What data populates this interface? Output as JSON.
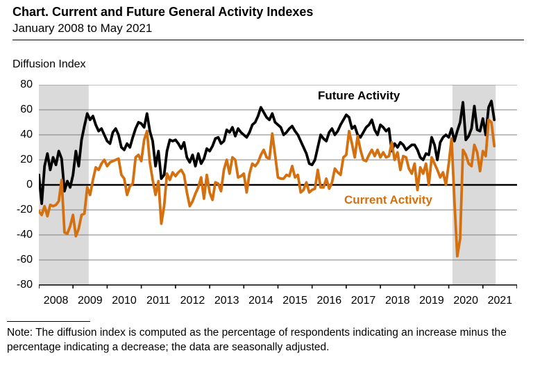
{
  "header": {
    "title": "Chart. Current and Future General Activity Indexes",
    "subtitle": "January 2008 to May 2021"
  },
  "note": "Note: The diffusion index is computed as the percentage of respondents indicating an increase minus the percentage indicating a decrease; the data are seasonally adjusted.",
  "chart_data": {
    "type": "line",
    "title": "Chart. Current and Future General Activity Indexes",
    "subtitle": "January 2008 to May 2021",
    "ylabel": "Diffusion Index",
    "xlabel": "",
    "ylim": [
      -80,
      80
    ],
    "yticks": [
      80,
      60,
      40,
      20,
      0,
      -20,
      -40,
      -60,
      -80
    ],
    "grid": true,
    "gridline_color": "#7f7f7f",
    "zero_line_color": "#000000",
    "x_start": "2008-01",
    "x_end": "2021-05",
    "x_frequency": "monthly",
    "x_total_months_span": 168,
    "year_labels": [
      "2008",
      "2009",
      "2010",
      "2011",
      "2012",
      "2013",
      "2014",
      "2015",
      "2016",
      "2017",
      "2018",
      "2019",
      "2020",
      "2021"
    ],
    "recession_shading_color": "#dadada",
    "recession_bands_months": [
      {
        "start": 0,
        "end": 17.5
      },
      {
        "start": 145.3,
        "end": 160.5
      }
    ],
    "series": [
      {
        "name": "Future Activity",
        "color": "#000000",
        "values": [
          8,
          -15,
          15,
          25,
          12,
          22,
          16,
          27,
          21,
          -5,
          3,
          -2,
          8,
          27,
          15,
          36,
          47,
          57,
          52,
          55,
          48,
          43,
          45,
          40,
          35,
          33,
          42,
          45,
          40,
          30,
          28,
          33,
          30,
          38,
          45,
          50,
          49,
          46,
          57,
          43,
          35,
          15,
          27,
          5,
          8,
          27,
          36,
          35,
          36,
          33,
          29,
          34,
          22,
          18,
          24,
          15,
          25,
          17,
          21,
          29,
          27,
          31,
          37,
          38,
          33,
          35,
          44,
          42,
          46,
          39,
          45,
          42,
          40,
          38,
          42,
          48,
          50,
          55,
          62,
          58,
          54,
          52,
          57,
          50,
          48,
          46,
          40,
          42,
          45,
          47,
          43,
          40,
          35,
          30,
          25,
          17,
          16,
          20,
          30,
          40,
          37,
          35,
          42,
          45,
          40,
          43,
          48,
          52,
          56,
          54,
          45,
          47,
          40,
          38,
          42,
          46,
          48,
          52,
          44,
          40,
          48,
          46,
          43,
          45,
          27,
          33,
          30,
          34,
          32,
          28,
          30,
          32,
          32,
          28,
          22,
          20,
          25,
          24,
          38,
          32,
          20,
          34,
          38,
          40,
          38,
          45,
          35,
          43,
          50,
          66,
          36,
          39,
          45,
          63,
          44,
          43,
          53,
          40,
          62,
          67,
          52
        ]
      },
      {
        "name": "Current Activity",
        "color": "#d4700f",
        "values": [
          -21,
          -24,
          -17,
          -25,
          -16,
          -17,
          -16,
          -13,
          4,
          -38,
          -39,
          -33,
          -24,
          -41,
          -35,
          -24,
          -23,
          -2,
          -8,
          4,
          14,
          12,
          17,
          20,
          15,
          18,
          19,
          20,
          21,
          8,
          5,
          -8,
          -1,
          1,
          22,
          24,
          19,
          36,
          43,
          18,
          4,
          -8,
          3,
          -31,
          -17,
          9,
          4,
          10,
          7,
          10,
          12,
          8,
          -6,
          -17,
          -13,
          -7,
          -2,
          6,
          -11,
          8,
          -6,
          -12,
          2,
          1,
          -5,
          12,
          20,
          9,
          22,
          20,
          6,
          7,
          9,
          -6,
          9,
          17,
          15,
          18,
          24,
          28,
          22,
          21,
          41,
          24,
          6,
          5,
          5,
          8,
          7,
          15,
          6,
          8,
          -6,
          -4,
          2,
          -6,
          -4,
          -3,
          12,
          -2,
          -2,
          5,
          -3,
          2,
          13,
          10,
          8,
          22,
          24,
          43,
          33,
          22,
          39,
          28,
          20,
          19,
          24,
          28,
          23,
          28,
          22,
          26,
          22,
          23,
          34,
          20,
          26,
          12,
          23,
          22,
          13,
          9,
          17,
          -4,
          14,
          9,
          17,
          0,
          22,
          17,
          12,
          6,
          10,
          0,
          17,
          37,
          -13,
          -57,
          -43,
          28,
          24,
          17,
          15,
          32,
          26,
          11,
          27,
          23,
          52,
          50,
          31
        ]
      }
    ],
    "annotations": [
      {
        "text": "Future Activity",
        "color": "#000000"
      },
      {
        "text": "Current Activity",
        "color": "#d4700f"
      }
    ]
  }
}
